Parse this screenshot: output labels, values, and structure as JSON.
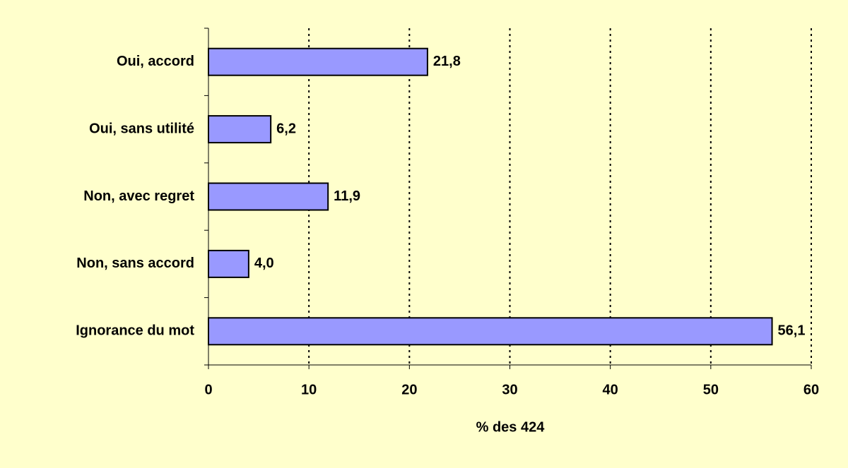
{
  "chart_data": {
    "type": "barh",
    "categories": [
      "Oui, accord",
      "Oui, sans utilité",
      "Non, avec regret",
      "Non, sans accord",
      "Ignorance du mot"
    ],
    "values": [
      21.8,
      6.2,
      11.9,
      4.0,
      56.1
    ],
    "value_labels": [
      "21,8",
      "6,2",
      "11,9",
      "4,0",
      "56,1"
    ],
    "color": "#9999ff",
    "x_label": "% des 424",
    "xlim": [
      0,
      60
    ],
    "xticks": [
      0,
      10,
      20,
      30,
      40,
      50,
      60
    ],
    "grid": true
  }
}
